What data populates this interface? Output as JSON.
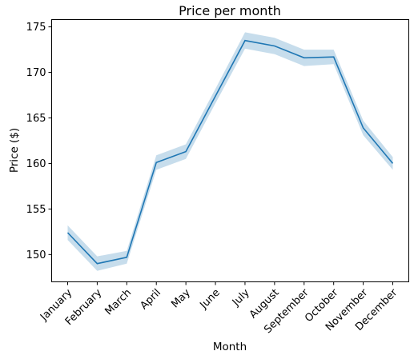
{
  "chart_data": {
    "type": "line",
    "title": "Price per month",
    "xlabel": "Month",
    "ylabel": "Price ($)",
    "categories": [
      "January",
      "February",
      "March",
      "April",
      "May",
      "June",
      "July",
      "August",
      "September",
      "October",
      "November",
      "December"
    ],
    "values": [
      152.4,
      149.0,
      149.7,
      160.1,
      161.3,
      167.4,
      173.5,
      172.9,
      171.6,
      171.7,
      163.9,
      160.0
    ],
    "ci_lower": [
      151.6,
      148.2,
      149.0,
      159.3,
      160.5,
      166.6,
      172.6,
      172.0,
      170.7,
      170.9,
      163.1,
      159.3
    ],
    "ci_upper": [
      153.2,
      149.8,
      150.4,
      160.9,
      162.1,
      168.2,
      174.4,
      173.8,
      172.5,
      172.5,
      164.7,
      160.7
    ],
    "yticks": [
      150,
      155,
      160,
      165,
      170,
      175
    ],
    "ylim": [
      147.0,
      175.8
    ],
    "grid": false,
    "line_color": "#1f77b4",
    "band_color": "#1f77b4"
  }
}
